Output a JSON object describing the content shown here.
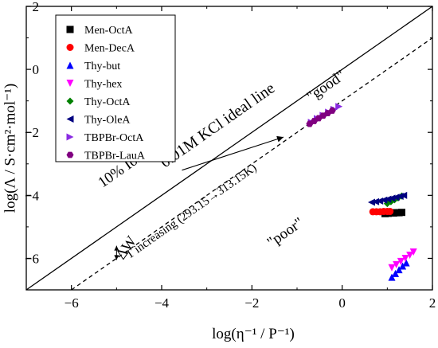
{
  "chart_data": {
    "type": "scatter",
    "xlabel": "log(η⁻¹ / P⁻¹)",
    "ylabel": "log(Λ / S·cm²·mol⁻¹)",
    "xlim": [
      -7,
      2
    ],
    "ylim": [
      -7,
      2
    ],
    "x_ticks": [
      -6,
      -4,
      -2,
      0,
      2
    ],
    "y_ticks": [
      -6,
      -4,
      -2,
      0,
      2
    ],
    "x_tick_labels": [
      "−6",
      "−4",
      "−2",
      "0",
      "2"
    ],
    "y_tick_labels": [
      "−6",
      "−4",
      "−2",
      "0",
      "2"
    ],
    "grid": false,
    "legend_position": "top-left",
    "series": [
      {
        "name": "Men-OctA",
        "marker": "square",
        "color": "#000000",
        "x": [
          0.95,
          1.02,
          1.08,
          1.14,
          1.2,
          1.26,
          1.32
        ],
        "y": [
          -4.58,
          -4.57,
          -4.56,
          -4.56,
          -4.55,
          -4.55,
          -4.54
        ]
      },
      {
        "name": "Men-DecA",
        "marker": "circle",
        "color": "#ff0000",
        "x": [
          0.68,
          0.76,
          0.84,
          0.92,
          1.0,
          1.06
        ],
        "y": [
          -4.52,
          -4.52,
          -4.52,
          -4.51,
          -4.51,
          -4.51
        ]
      },
      {
        "name": "Thy-but",
        "marker": "triangle-up",
        "color": "#0000ff",
        "x": [
          1.1,
          1.18,
          1.26,
          1.34,
          1.42
        ],
        "y": [
          -6.6,
          -6.48,
          -6.36,
          -6.24,
          -6.14
        ]
      },
      {
        "name": "Thy-hex",
        "marker": "triangle-down",
        "color": "#ff00ff",
        "x": [
          1.1,
          1.2,
          1.3,
          1.4,
          1.5,
          1.58
        ],
        "y": [
          -6.3,
          -6.2,
          -6.1,
          -6.0,
          -5.9,
          -5.8
        ]
      },
      {
        "name": "Thy-OctA",
        "marker": "diamond",
        "color": "#008000",
        "x": [
          1.0,
          1.08,
          1.16,
          1.24,
          1.32
        ],
        "y": [
          -4.26,
          -4.2,
          -4.14,
          -4.08,
          -4.02
        ]
      },
      {
        "name": "Thy-OleA",
        "marker": "triangle-left",
        "color": "#000080",
        "x": [
          0.65,
          0.74,
          0.83,
          0.92,
          1.01,
          1.1,
          1.19,
          1.28,
          1.36
        ],
        "y": [
          -4.22,
          -4.2,
          -4.18,
          -4.15,
          -4.12,
          -4.09,
          -4.06,
          -4.03,
          -4.0
        ]
      },
      {
        "name": "TBPBr-OctA",
        "marker": "triangle-right",
        "color": "#8a2be2",
        "x": [
          -0.68,
          -0.55,
          -0.42,
          -0.3,
          -0.18,
          -0.07
        ],
        "y": [
          -1.68,
          -1.56,
          -1.46,
          -1.36,
          -1.27,
          -1.18
        ]
      },
      {
        "name": "TBPBr-LauA",
        "marker": "hexagon",
        "color": "#800080",
        "x": [
          -0.72,
          -0.62,
          -0.52,
          -0.42,
          -0.32,
          -0.22
        ],
        "y": [
          -1.73,
          -1.64,
          -1.55,
          -1.47,
          -1.39,
          -1.31
        ]
      }
    ],
    "reference_lines": [
      {
        "label": "0.01M KCl ideal line",
        "style": "solid",
        "points": [
          [
            -7,
            -7
          ],
          [
            2,
            2
          ]
        ]
      },
      {
        "label": "10% Ionicity",
        "style": "dashed",
        "points": [
          [
            -6,
            -7
          ],
          [
            2,
            1
          ]
        ]
      }
    ],
    "annotations": [
      {
        "text": "\"good\"",
        "x": -0.3,
        "y": -0.65,
        "rotation": 35
      },
      {
        "text": "\"poor\"",
        "x": -1.2,
        "y": -5.3,
        "rotation": 38
      },
      {
        "text": "ΔW",
        "x": -4.7,
        "y": -5.75,
        "rotation": -55
      },
      {
        "text": "T increasing (293.15→313.15K)",
        "x": -3.3,
        "y": -4.6,
        "rotation": -35,
        "arrow_from": [
          -3.55,
          -3.2
        ],
        "arrow_to": [
          -1.3,
          -2.15
        ]
      }
    ],
    "delta_w_arrow": {
      "from": [
        -5.0,
        -5.6
      ],
      "to": [
        -5.0,
        -6.05
      ]
    }
  }
}
